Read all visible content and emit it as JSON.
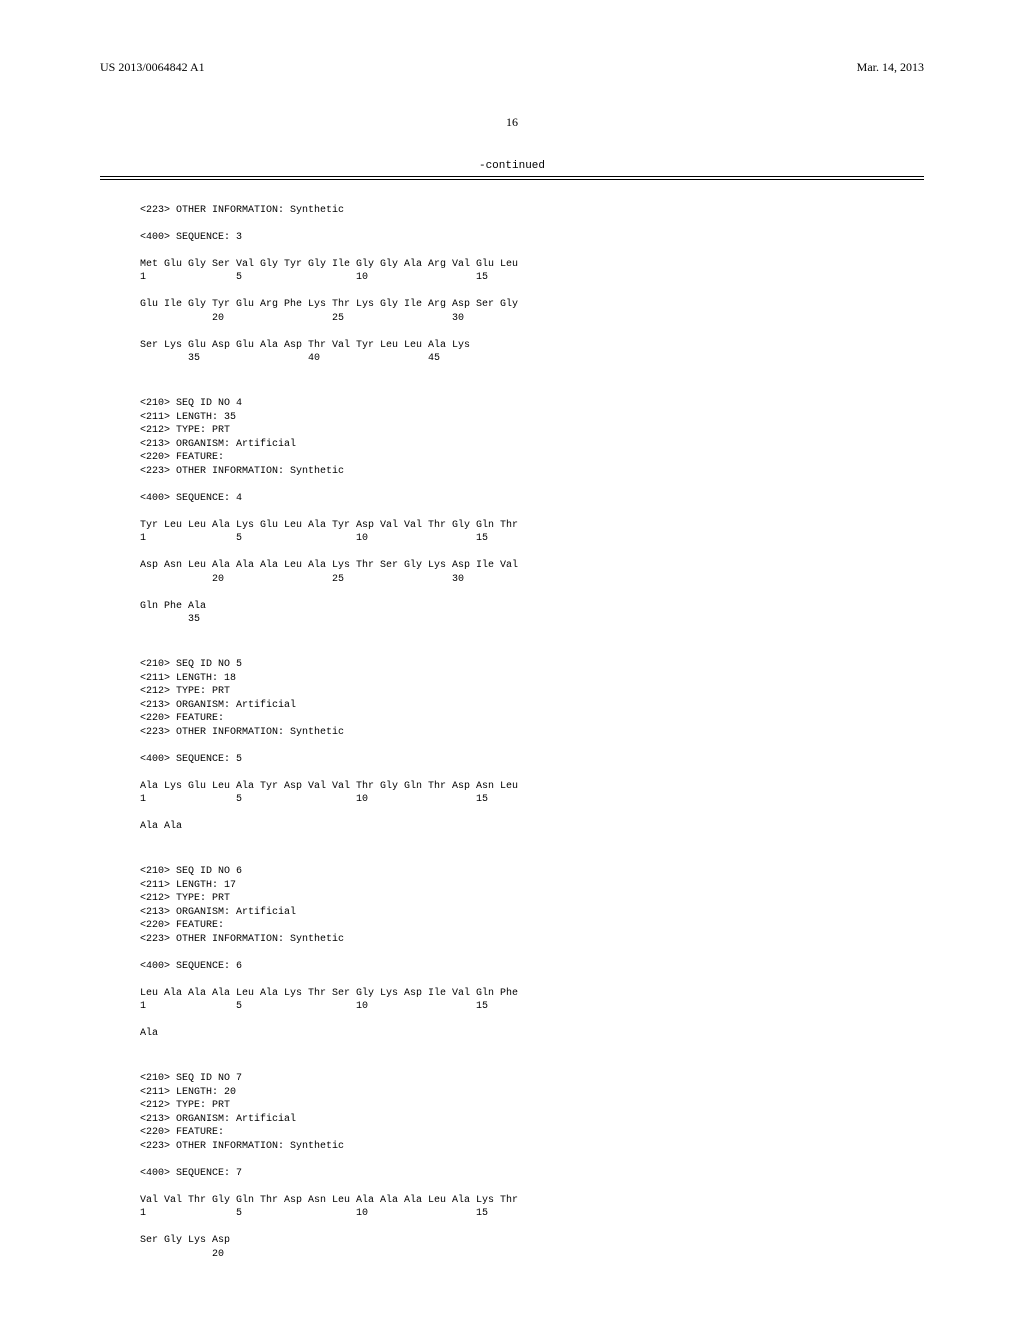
{
  "header": {
    "patent_number": "US 2013/0064842 A1",
    "date": "Mar. 14, 2013"
  },
  "page_number": "16",
  "continued_label": "-continued",
  "sequences": {
    "header_extra": {
      "other_info": "<223> OTHER INFORMATION: Synthetic",
      "seq_marker": "<400> SEQUENCE: 3",
      "line1": "Met Glu Gly Ser Val Gly Tyr Gly Ile Gly Gly Ala Arg Val Glu Leu",
      "num1": "1               5                   10                  15",
      "line2": "Glu Ile Gly Tyr Glu Arg Phe Lys Thr Lys Gly Ile Arg Asp Ser Gly",
      "num2": "            20                  25                  30",
      "line3": "Ser Lys Glu Asp Glu Ala Asp Thr Val Tyr Leu Leu Ala Lys",
      "num3": "        35                  40                  45"
    },
    "seq4": {
      "h1": "<210> SEQ ID NO 4",
      "h2": "<211> LENGTH: 35",
      "h3": "<212> TYPE: PRT",
      "h4": "<213> ORGANISM: Artificial",
      "h5": "<220> FEATURE:",
      "h6": "<223> OTHER INFORMATION: Synthetic",
      "marker": "<400> SEQUENCE: 4",
      "line1": "Tyr Leu Leu Ala Lys Glu Leu Ala Tyr Asp Val Val Thr Gly Gln Thr",
      "num1": "1               5                   10                  15",
      "line2": "Asp Asn Leu Ala Ala Ala Leu Ala Lys Thr Ser Gly Lys Asp Ile Val",
      "num2": "            20                  25                  30",
      "line3": "Gln Phe Ala",
      "num3": "        35"
    },
    "seq5": {
      "h1": "<210> SEQ ID NO 5",
      "h2": "<211> LENGTH: 18",
      "h3": "<212> TYPE: PRT",
      "h4": "<213> ORGANISM: Artificial",
      "h5": "<220> FEATURE:",
      "h6": "<223> OTHER INFORMATION: Synthetic",
      "marker": "<400> SEQUENCE: 5",
      "line1": "Ala Lys Glu Leu Ala Tyr Asp Val Val Thr Gly Gln Thr Asp Asn Leu",
      "num1": "1               5                   10                  15",
      "line2": "Ala Ala"
    },
    "seq6": {
      "h1": "<210> SEQ ID NO 6",
      "h2": "<211> LENGTH: 17",
      "h3": "<212> TYPE: PRT",
      "h4": "<213> ORGANISM: Artificial",
      "h5": "<220> FEATURE:",
      "h6": "<223> OTHER INFORMATION: Synthetic",
      "marker": "<400> SEQUENCE: 6",
      "line1": "Leu Ala Ala Ala Leu Ala Lys Thr Ser Gly Lys Asp Ile Val Gln Phe",
      "num1": "1               5                   10                  15",
      "line2": "Ala"
    },
    "seq7": {
      "h1": "<210> SEQ ID NO 7",
      "h2": "<211> LENGTH: 20",
      "h3": "<212> TYPE: PRT",
      "h4": "<213> ORGANISM: Artificial",
      "h5": "<220> FEATURE:",
      "h6": "<223> OTHER INFORMATION: Synthetic",
      "marker": "<400> SEQUENCE: 7",
      "line1": "Val Val Thr Gly Gln Thr Asp Asn Leu Ala Ala Ala Leu Ala Lys Thr",
      "num1": "1               5                   10                  15",
      "line2": "Ser Gly Lys Asp",
      "num2": "            20"
    }
  }
}
